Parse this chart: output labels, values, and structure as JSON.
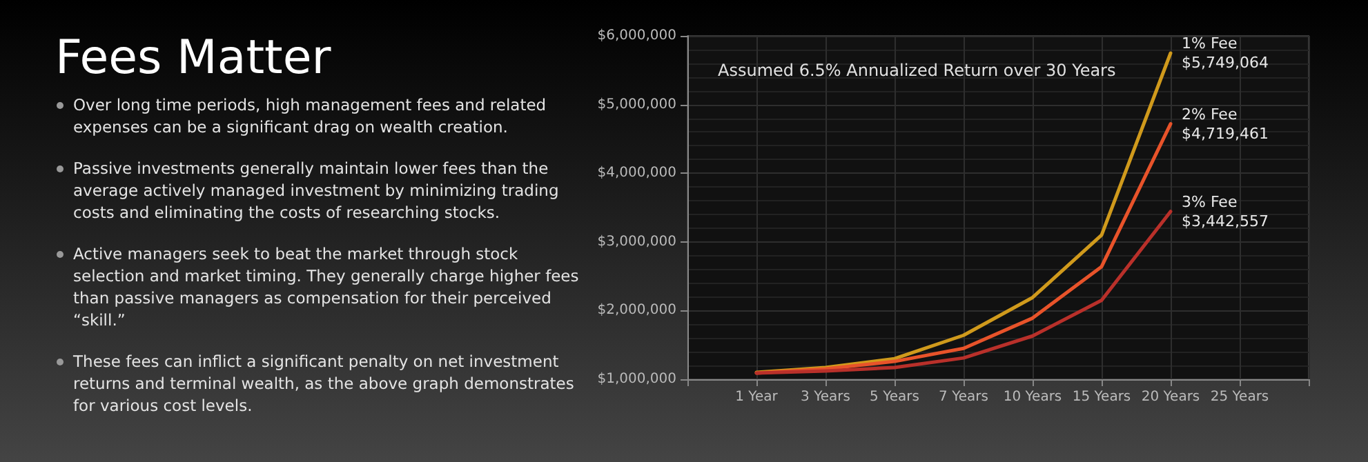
{
  "chart_data": {
    "type": "line",
    "title": "Fees Matter",
    "subtitle": "Assumed 6.5% Annualized Return over 30 Years",
    "annotations": [
      "Over long time periods, high management fees and related expenses can be a significant drag on wealth creation.",
      "Passive investments generally maintain lower fees than the average actively managed investment by minimizing trading costs and eliminating the costs of researching stocks.",
      "Active managers seek to beat the market through stock selection and market timing. They generally charge higher fees than passive managers as compensation for their perceived “skill.”",
      "These fees can inflict a significant penalty on net investment returns and terminal wealth, as the above graph demonstrates for various cost levels."
    ],
    "categories": [
      null,
      "1 Year",
      "3 Years",
      "5 Years",
      "7 Years",
      "10 Years",
      "15 Years",
      "20 Years",
      "25 Years",
      null
    ],
    "ylim": [
      1000000,
      6000000
    ],
    "yticks": [
      {
        "value": 1000000,
        "label": "$1,000,000"
      },
      {
        "value": 2000000,
        "label": "$2,000,000"
      },
      {
        "value": 3000000,
        "label": "$3,000,000"
      },
      {
        "value": 4000000,
        "label": "$4,000,000"
      },
      {
        "value": 5000000,
        "label": "$5,000,000"
      },
      {
        "value": 6000000,
        "label": "$6,000,000"
      }
    ],
    "series": [
      {
        "name": "1% Fee",
        "color": "#d09a1c",
        "values": [
          null,
          1100000,
          1170000,
          1300000,
          1640000,
          2190000,
          3100000,
          5749064,
          null,
          null
        ],
        "value_labels": [
          null,
          null,
          null,
          null,
          null,
          null,
          null,
          "$5,749,064",
          null,
          null
        ]
      },
      {
        "name": "2% Fee",
        "color": "#e8532a",
        "values": [
          null,
          1090000,
          1150000,
          1260000,
          1450000,
          1890000,
          2640000,
          4719461,
          null,
          null
        ],
        "value_labels": [
          null,
          null,
          null,
          null,
          null,
          null,
          null,
          "$4,719,461",
          null,
          null
        ]
      },
      {
        "name": "3% Fee",
        "color": "#b9302a",
        "values": [
          null,
          1090000,
          1120000,
          1170000,
          1310000,
          1630000,
          2150000,
          3442557,
          null,
          null
        ],
        "value_labels": [
          null,
          null,
          null,
          null,
          null,
          null,
          null,
          "$3,442,557",
          null,
          null
        ]
      }
    ],
    "grid": true,
    "legend": false,
    "marker": "none"
  }
}
